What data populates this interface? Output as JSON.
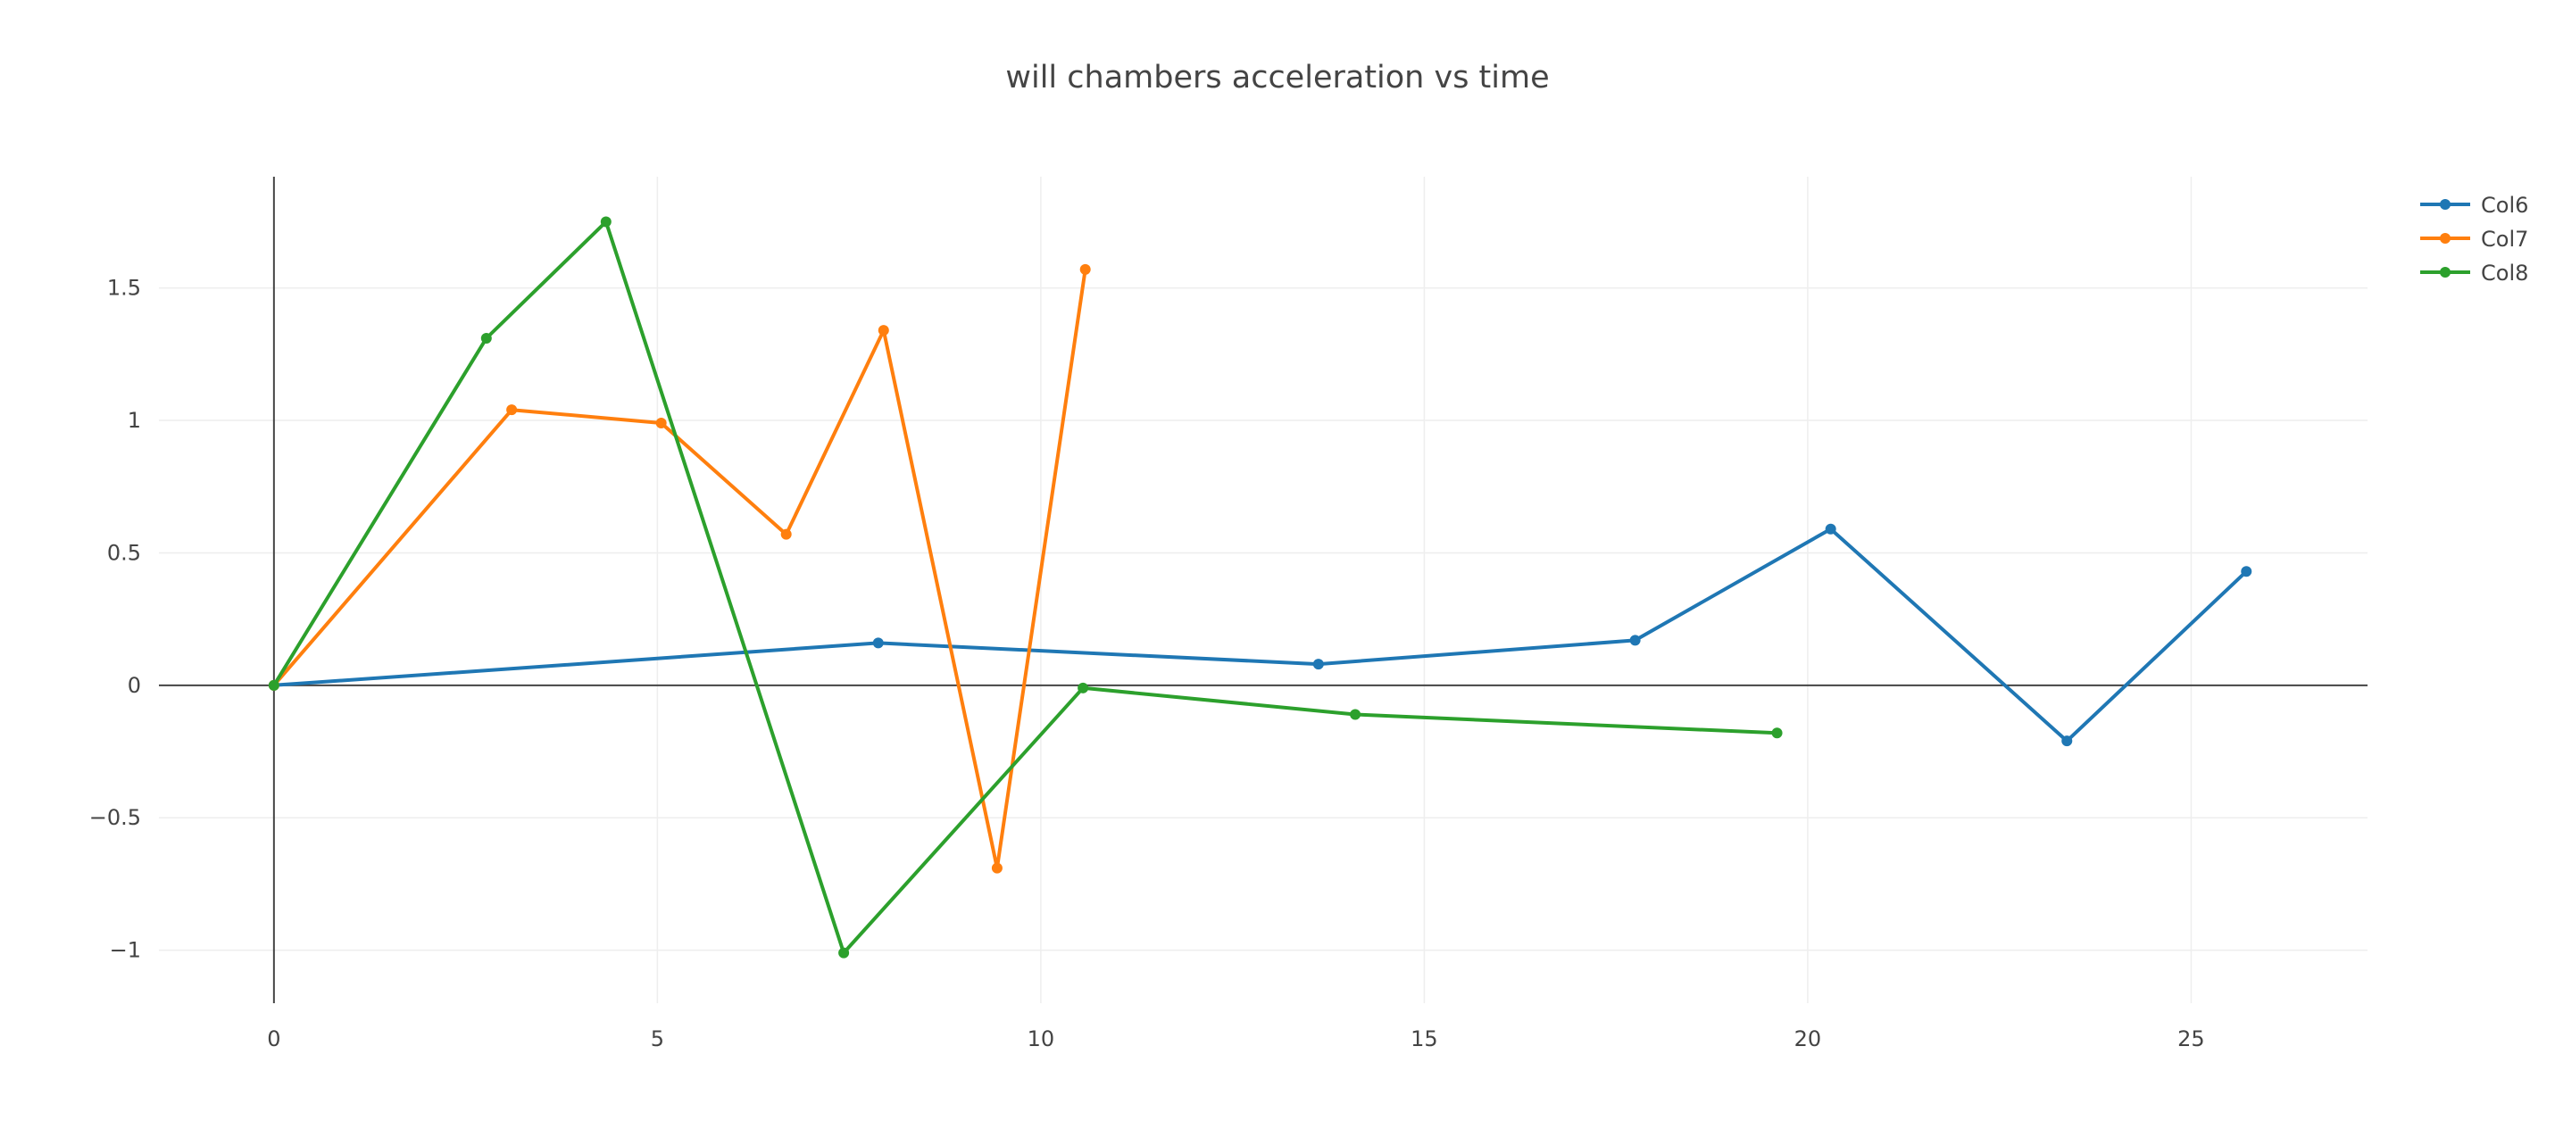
{
  "chart_data": {
    "type": "line",
    "title": "will chambers acceleration vs time",
    "xlabel": "",
    "ylabel": "",
    "xlim": [
      -1.5,
      27.3
    ],
    "ylim": [
      -1.2,
      1.92
    ],
    "xticks": [
      0,
      5,
      10,
      15,
      20,
      25
    ],
    "yticks": [
      -1,
      -0.5,
      0,
      0.5,
      1,
      1.5
    ],
    "ytick_labels": [
      "−1",
      "−0.5",
      "0",
      "0.5",
      "1",
      "1.5"
    ],
    "grid": true,
    "legend_position": "top-right",
    "series": [
      {
        "name": "Col6",
        "color": "#1f77b4",
        "x": [
          0,
          7.88,
          13.62,
          17.75,
          20.3,
          23.38,
          25.72
        ],
        "y": [
          0,
          0.16,
          0.08,
          0.17,
          0.59,
          -0.21,
          0.43
        ]
      },
      {
        "name": "Col7",
        "color": "#ff7f0e",
        "x": [
          0,
          3.1,
          5.05,
          6.68,
          7.95,
          9.43,
          10.58
        ],
        "y": [
          0,
          1.04,
          0.99,
          0.57,
          1.34,
          -0.69,
          1.57
        ]
      },
      {
        "name": "Col8",
        "color": "#2ca02c",
        "x": [
          0,
          2.77,
          4.33,
          7.43,
          10.55,
          14.1,
          19.6
        ],
        "y": [
          0,
          1.31,
          1.75,
          -1.01,
          -0.01,
          -0.11,
          -0.18
        ]
      }
    ]
  }
}
